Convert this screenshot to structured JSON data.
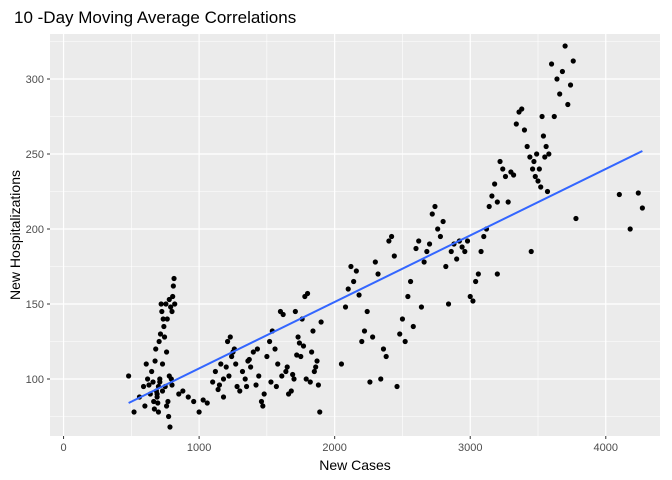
{
  "chart_data": {
    "type": "scatter",
    "title": "10 -Day Moving Average Correlations",
    "xlabel": "New  Cases",
    "ylabel": "New Hospitalizations",
    "xlim": [
      -100,
      4400
    ],
    "ylim": [
      62,
      330
    ],
    "x_ticks": [
      0,
      1000,
      2000,
      3000,
      4000
    ],
    "y_ticks": [
      100,
      150,
      200,
      250,
      300
    ],
    "x_tick_labels": [
      "0",
      "1000",
      "2000",
      "3000",
      "4000"
    ],
    "y_tick_labels": [
      "100",
      "150",
      "200",
      "250",
      "300"
    ],
    "grid": true,
    "colors": {
      "panel": "#ebebeb",
      "grid_major": "#ffffff",
      "points": "#000000",
      "fit_line": "#3366ff"
    },
    "fit_line": {
      "x": [
        480,
        4270
      ],
      "y": [
        84,
        252
      ]
    },
    "points": [
      [
        480,
        102
      ],
      [
        520,
        78
      ],
      [
        560,
        88
      ],
      [
        590,
        95
      ],
      [
        600,
        82
      ],
      [
        610,
        110
      ],
      [
        620,
        100
      ],
      [
        630,
        96
      ],
      [
        640,
        90
      ],
      [
        650,
        105
      ],
      [
        660,
        98
      ],
      [
        665,
        85
      ],
      [
        670,
        80
      ],
      [
        675,
        112
      ],
      [
        680,
        120
      ],
      [
        685,
        92
      ],
      [
        690,
        88
      ],
      [
        695,
        84
      ],
      [
        700,
        95
      ],
      [
        705,
        125
      ],
      [
        710,
        100
      ],
      [
        715,
        130
      ],
      [
        720,
        150
      ],
      [
        725,
        145
      ],
      [
        730,
        110
      ],
      [
        735,
        140
      ],
      [
        740,
        135
      ],
      [
        745,
        128
      ],
      [
        750,
        95
      ],
      [
        755,
        150
      ],
      [
        760,
        118
      ],
      [
        765,
        140
      ],
      [
        770,
        85
      ],
      [
        775,
        75
      ],
      [
        780,
        153
      ],
      [
        785,
        68
      ],
      [
        790,
        148
      ],
      [
        795,
        100
      ],
      [
        800,
        145
      ],
      [
        805,
        155
      ],
      [
        810,
        162
      ],
      [
        815,
        167
      ],
      [
        820,
        150
      ],
      [
        700,
        78
      ],
      [
        690,
        90
      ],
      [
        710,
        98
      ],
      [
        730,
        92
      ],
      [
        760,
        82
      ],
      [
        780,
        102
      ],
      [
        800,
        96
      ],
      [
        850,
        90
      ],
      [
        880,
        92
      ],
      [
        920,
        88
      ],
      [
        960,
        85
      ],
      [
        1000,
        78
      ],
      [
        1030,
        86
      ],
      [
        1060,
        84
      ],
      [
        1100,
        98
      ],
      [
        1120,
        105
      ],
      [
        1140,
        93
      ],
      [
        1160,
        110
      ],
      [
        1180,
        100
      ],
      [
        1200,
        108
      ],
      [
        1220,
        102
      ],
      [
        1240,
        115
      ],
      [
        1260,
        120
      ],
      [
        1280,
        95
      ],
      [
        1300,
        92
      ],
      [
        1320,
        105
      ],
      [
        1340,
        100
      ],
      [
        1360,
        112
      ],
      [
        1380,
        108
      ],
      [
        1400,
        118
      ],
      [
        1420,
        96
      ],
      [
        1440,
        102
      ],
      [
        1460,
        85
      ],
      [
        1480,
        90
      ],
      [
        1500,
        115
      ],
      [
        1520,
        125
      ],
      [
        1540,
        132
      ],
      [
        1560,
        120
      ],
      [
        1580,
        110
      ],
      [
        1600,
        145
      ],
      [
        1620,
        143
      ],
      [
        1640,
        105
      ],
      [
        1660,
        90
      ],
      [
        1680,
        92
      ],
      [
        1700,
        100
      ],
      [
        1720,
        116
      ],
      [
        1740,
        124
      ],
      [
        1760,
        140
      ],
      [
        1780,
        155
      ],
      [
        1800,
        157
      ],
      [
        1820,
        98
      ],
      [
        1840,
        132
      ],
      [
        1860,
        108
      ],
      [
        1880,
        96
      ],
      [
        1900,
        138
      ],
      [
        1150,
        96
      ],
      [
        1180,
        88
      ],
      [
        1210,
        125
      ],
      [
        1230,
        128
      ],
      [
        1250,
        118
      ],
      [
        1270,
        110
      ],
      [
        1350,
        95
      ],
      [
        1370,
        113
      ],
      [
        1430,
        120
      ],
      [
        1470,
        82
      ],
      [
        1530,
        98
      ],
      [
        1570,
        95
      ],
      [
        1610,
        102
      ],
      [
        1650,
        108
      ],
      [
        1690,
        103
      ],
      [
        1710,
        145
      ],
      [
        1730,
        128
      ],
      [
        1750,
        115
      ],
      [
        1770,
        122
      ],
      [
        1790,
        100
      ],
      [
        1830,
        118
      ],
      [
        1850,
        105
      ],
      [
        1870,
        112
      ],
      [
        1890,
        78
      ],
      [
        2050,
        110
      ],
      [
        2080,
        148
      ],
      [
        2100,
        160
      ],
      [
        2120,
        175
      ],
      [
        2140,
        165
      ],
      [
        2160,
        172
      ],
      [
        2180,
        156
      ],
      [
        2200,
        125
      ],
      [
        2220,
        132
      ],
      [
        2240,
        145
      ],
      [
        2260,
        98
      ],
      [
        2280,
        128
      ],
      [
        2300,
        178
      ],
      [
        2320,
        170
      ],
      [
        2340,
        100
      ],
      [
        2360,
        120
      ],
      [
        2380,
        115
      ],
      [
        2400,
        192
      ],
      [
        2420,
        195
      ],
      [
        2440,
        182
      ],
      [
        2460,
        95
      ],
      [
        2480,
        130
      ],
      [
        2500,
        140
      ],
      [
        2520,
        125
      ],
      [
        2540,
        155
      ],
      [
        2560,
        165
      ],
      [
        2580,
        135
      ],
      [
        2600,
        187
      ],
      [
        2620,
        192
      ],
      [
        2640,
        148
      ],
      [
        2660,
        178
      ],
      [
        2680,
        185
      ],
      [
        2700,
        190
      ],
      [
        2720,
        210
      ],
      [
        2740,
        215
      ],
      [
        2760,
        200
      ],
      [
        2780,
        195
      ],
      [
        2800,
        205
      ],
      [
        2820,
        175
      ],
      [
        2840,
        150
      ],
      [
        2860,
        185
      ],
      [
        2880,
        190
      ],
      [
        2900,
        180
      ],
      [
        2920,
        192
      ],
      [
        2940,
        188
      ],
      [
        2960,
        185
      ],
      [
        2980,
        192
      ],
      [
        3000,
        155
      ],
      [
        3020,
        152
      ],
      [
        3040,
        165
      ],
      [
        3060,
        170
      ],
      [
        3080,
        185
      ],
      [
        3100,
        195
      ],
      [
        3120,
        200
      ],
      [
        3140,
        215
      ],
      [
        3160,
        222
      ],
      [
        3180,
        230
      ],
      [
        3200,
        218
      ],
      [
        3220,
        245
      ],
      [
        3240,
        240
      ],
      [
        3260,
        235
      ],
      [
        3280,
        218
      ],
      [
        3300,
        238
      ],
      [
        3320,
        236
      ],
      [
        3340,
        270
      ],
      [
        3360,
        278
      ],
      [
        3380,
        280
      ],
      [
        3400,
        266
      ],
      [
        3420,
        255
      ],
      [
        3440,
        248
      ],
      [
        3460,
        240
      ],
      [
        3480,
        235
      ],
      [
        3500,
        232
      ],
      [
        3520,
        228
      ],
      [
        3540,
        262
      ],
      [
        3560,
        255
      ],
      [
        3580,
        250
      ],
      [
        3600,
        310
      ],
      [
        3620,
        275
      ],
      [
        3640,
        300
      ],
      [
        3660,
        290
      ],
      [
        3680,
        305
      ],
      [
        3700,
        322
      ],
      [
        3720,
        283
      ],
      [
        3740,
        296
      ],
      [
        3760,
        312
      ],
      [
        3780,
        207
      ],
      [
        3200,
        170
      ],
      [
        3450,
        185
      ],
      [
        3470,
        245
      ],
      [
        3490,
        250
      ],
      [
        3510,
        240
      ],
      [
        3530,
        275
      ],
      [
        3550,
        248
      ],
      [
        3570,
        225
      ],
      [
        4100,
        223
      ],
      [
        4180,
        200
      ],
      [
        4240,
        224
      ],
      [
        4270,
        214
      ]
    ]
  }
}
